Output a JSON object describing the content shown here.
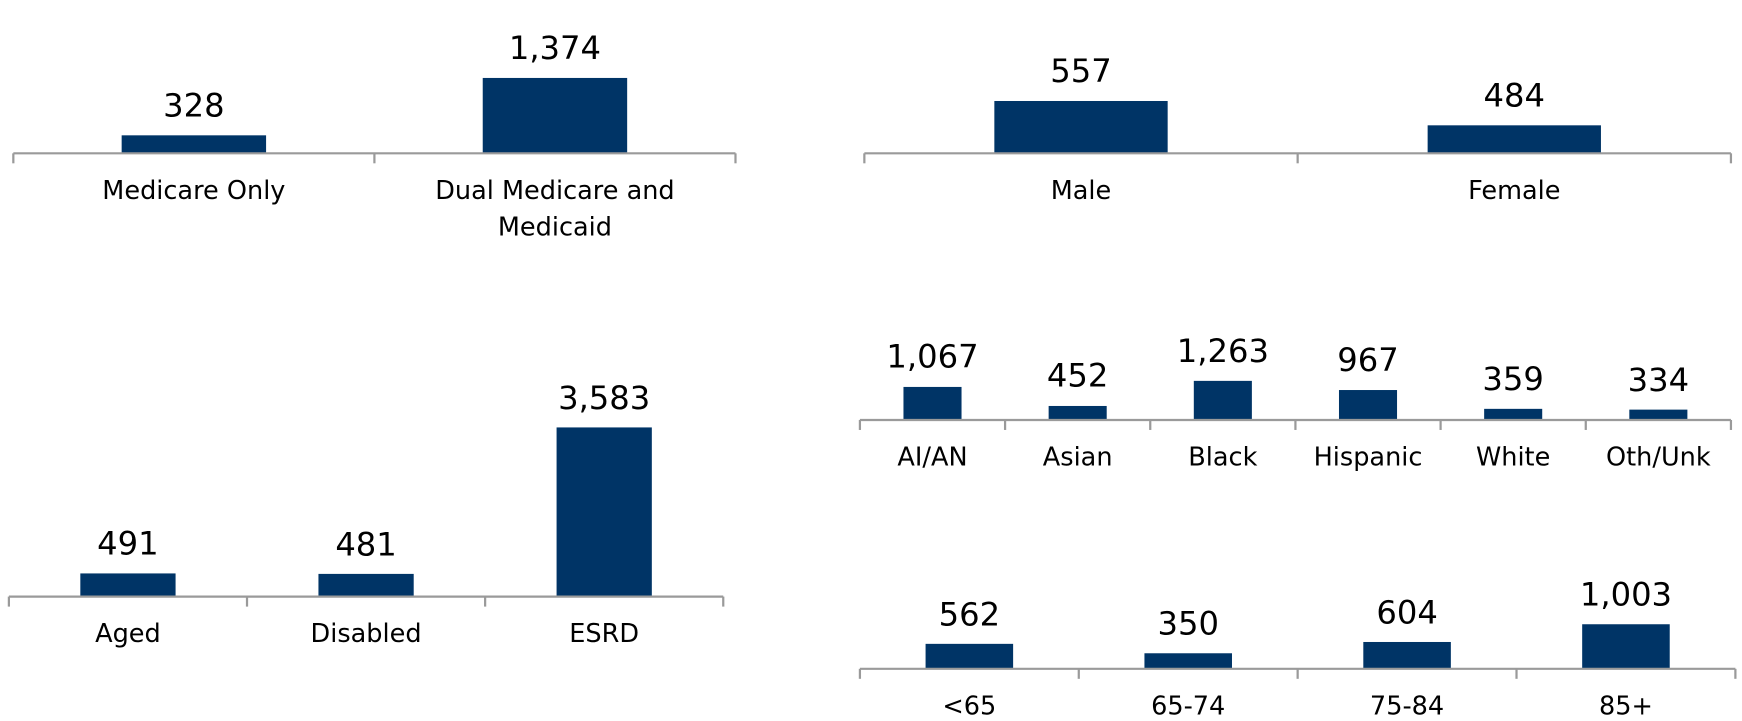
{
  "chart_data": [
    {
      "type": "bar",
      "categories": [
        "Medicare Only",
        "Dual Medicare and Medicaid"
      ],
      "values": [
        328,
        1374
      ],
      "value_labels": [
        "328",
        "1,374"
      ],
      "color": "#003466",
      "ylim": [
        0,
        1600
      ]
    },
    {
      "type": "bar",
      "categories": [
        "Male",
        "Female"
      ],
      "values": [
        557,
        484
      ],
      "value_labels": [
        "557",
        "484"
      ],
      "color": "#003466",
      "ylim": [
        400,
        600
      ]
    },
    {
      "type": "bar",
      "categories": [
        "Aged",
        "Disabled",
        "ESRD"
      ],
      "values": [
        491,
        481,
        3583
      ],
      "value_labels": [
        "491",
        "481",
        "3,583"
      ],
      "color": "#003466",
      "ylim": [
        0,
        4000
      ]
    },
    {
      "type": "bar",
      "categories": [
        "AI/AN",
        "Asian",
        "Black",
        "Hispanic",
        "White",
        "Oth/Unk"
      ],
      "values": [
        1067,
        452,
        1263,
        967,
        359,
        334
      ],
      "value_labels": [
        "1,067",
        "452",
        "1,263",
        "967",
        "359",
        "334"
      ],
      "color": "#003466",
      "ylim": [
        0,
        1400
      ]
    },
    {
      "type": "bar",
      "categories": [
        "<65",
        "65-74",
        "75-84",
        "85+"
      ],
      "values": [
        562,
        350,
        604,
        1003
      ],
      "value_labels": [
        "562",
        "350",
        "604",
        "1,003"
      ],
      "color": "#003466",
      "ylim": [
        0,
        1200
      ]
    }
  ]
}
